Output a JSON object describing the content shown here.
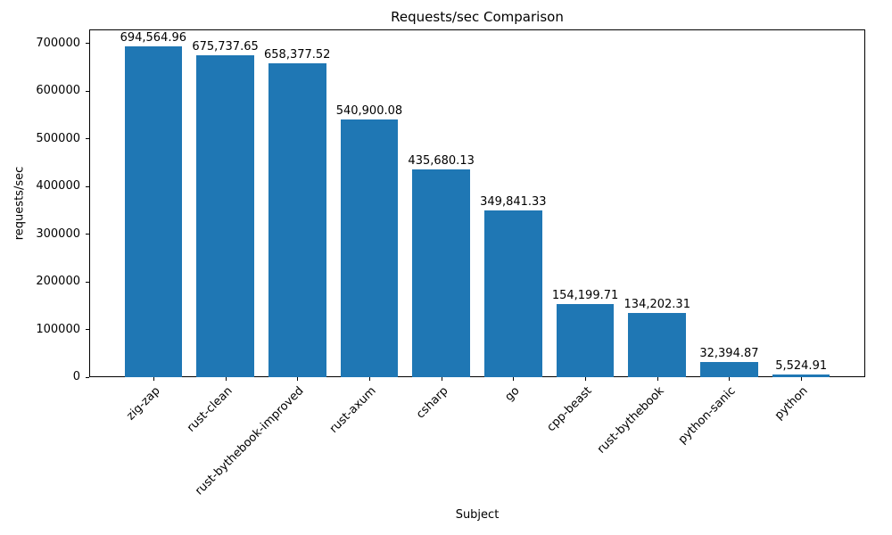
{
  "chart_data": {
    "type": "bar",
    "title": "Requests/sec Comparison",
    "xlabel": "Subject",
    "ylabel": "requests/sec",
    "categories": [
      "zig-zap",
      "rust-clean",
      "rust-bythebook-improved",
      "rust-axum",
      "csharp",
      "go",
      "cpp-beast",
      "rust-bythebook",
      "python-sanic",
      "python"
    ],
    "values": [
      694564.96,
      675737.65,
      658377.52,
      540900.08,
      435680.13,
      349841.33,
      154199.71,
      134202.31,
      32394.87,
      5524.91
    ],
    "bar_labels": [
      "694,564.96",
      "675,737.65",
      "658,377.52",
      "540,900.08",
      "435,680.13",
      "349,841.33",
      "154,199.71",
      "134,202.31",
      "32,394.87",
      "5,524.91"
    ],
    "yticks": [
      0,
      100000,
      200000,
      300000,
      400000,
      500000,
      600000,
      700000
    ],
    "ylim": [
      0,
      729293
    ],
    "bar_color": "#1f77b4",
    "axis_color": "#000000",
    "background_color": "#ffffff",
    "grid": false,
    "legend": null
  }
}
